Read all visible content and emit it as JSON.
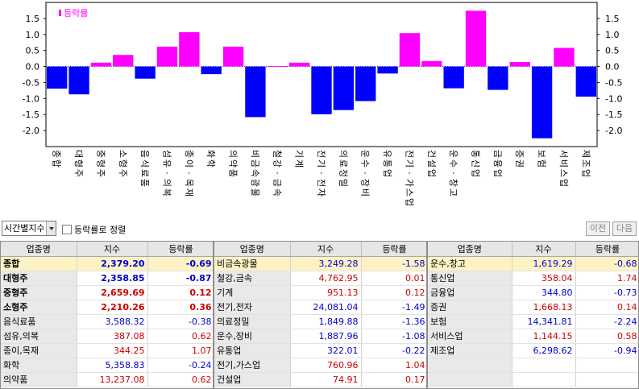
{
  "chart_data": {
    "type": "bar",
    "legend": "등락률",
    "legend_color": "#ff00ff",
    "positive_color": "#ff00ff",
    "negative_color": "#0000ff",
    "yticks": [
      "1.5",
      "1.0",
      "0.5",
      "0.0",
      "-0.5",
      "-1.0",
      "-1.5",
      "-2.0"
    ],
    "ylim": [
      -2.5,
      2.0
    ],
    "categories": [
      "종합",
      "대형주",
      "중형주",
      "소형주",
      "음식료품",
      "섬유·의복",
      "종이·목재",
      "화학",
      "의약품",
      "비금속광물",
      "철강·금속",
      "기계",
      "전기·전자",
      "의료정밀",
      "운수·장비",
      "유통업",
      "전기·가스업",
      "건설업",
      "운수·창고",
      "통신업",
      "금융업",
      "증권",
      "보험",
      "서비스업",
      "제조업"
    ],
    "values": [
      -0.69,
      -0.87,
      0.12,
      0.36,
      -0.38,
      0.62,
      1.07,
      -0.24,
      0.62,
      -1.58,
      0.01,
      0.12,
      -1.49,
      -1.36,
      -1.08,
      -0.22,
      1.04,
      0.17,
      -0.68,
      1.74,
      -0.73,
      0.14,
      -2.24,
      0.58,
      -0.94
    ]
  },
  "toolbar": {
    "select_value": "시간별지수",
    "checkbox_label": "등락률로 정렬",
    "prev_label": "이전",
    "next_label": "다음"
  },
  "headers": {
    "name": "업종명",
    "index": "지수",
    "rate": "등락률"
  },
  "colors": {
    "up": "#cc0000",
    "down": "#0000cc",
    "highlight": "#fdf2c4"
  },
  "table1": [
    {
      "name": "종합",
      "index": "2,379.20",
      "rate": "-0.69"
    },
    {
      "name": "대형주",
      "index": "2,358.85",
      "rate": "-0.87"
    },
    {
      "name": "중형주",
      "index": "2,659.69",
      "rate": "0.12"
    },
    {
      "name": "소형주",
      "index": "2,210.26",
      "rate": "0.36"
    },
    {
      "name": "음식료품",
      "index": "3,588.32",
      "rate": "-0.38"
    },
    {
      "name": "섬유,의복",
      "index": "387.08",
      "rate": "0.62"
    },
    {
      "name": "종이,목재",
      "index": "344.25",
      "rate": "1.07"
    },
    {
      "name": "화학",
      "index": "5,358.83",
      "rate": "-0.24"
    },
    {
      "name": "의약품",
      "index": "13,237.08",
      "rate": "0.62"
    }
  ],
  "table2": [
    {
      "name": "비금속광물",
      "index": "3,249.28",
      "rate": "-1.58"
    },
    {
      "name": "철강,금속",
      "index": "4,762.95",
      "rate": "0.01"
    },
    {
      "name": "기계",
      "index": "951.13",
      "rate": "0.12"
    },
    {
      "name": "전기,전자",
      "index": "24,081.04",
      "rate": "-1.49"
    },
    {
      "name": "의료정밀",
      "index": "1,849.88",
      "rate": "-1.36"
    },
    {
      "name": "운수,장비",
      "index": "1,887.96",
      "rate": "-1.08"
    },
    {
      "name": "유통업",
      "index": "322.01",
      "rate": "-0.22"
    },
    {
      "name": "전기,가스업",
      "index": "760.96",
      "rate": "1.04"
    },
    {
      "name": "건설업",
      "index": "74.91",
      "rate": "0.17"
    }
  ],
  "table3": [
    {
      "name": "운수,창고",
      "index": "1,619.29",
      "rate": "-0.68"
    },
    {
      "name": "통신업",
      "index": "358.04",
      "rate": "1.74"
    },
    {
      "name": "금융업",
      "index": "344.80",
      "rate": "-0.73"
    },
    {
      "name": "증권",
      "index": "1,668.13",
      "rate": "0.14"
    },
    {
      "name": "보험",
      "index": "14,341.81",
      "rate": "-2.24"
    },
    {
      "name": "서비스업",
      "index": "1,144.15",
      "rate": "0.58"
    },
    {
      "name": "제조업",
      "index": "6,298.62",
      "rate": "-0.94"
    },
    {
      "name": "",
      "index": "",
      "rate": ""
    },
    {
      "name": "",
      "index": "",
      "rate": ""
    }
  ]
}
